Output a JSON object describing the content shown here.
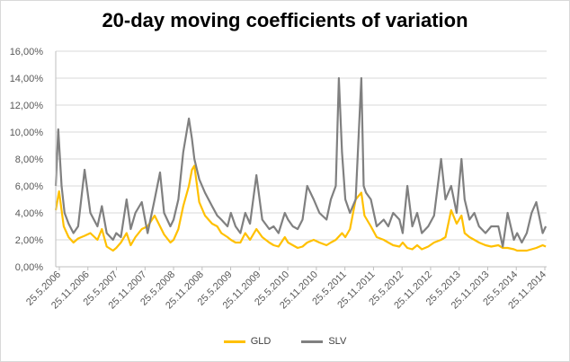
{
  "chart_data": {
    "type": "line",
    "title": "20-day moving coefficients of variation",
    "xlabel": "",
    "ylabel": "",
    "ylim": [
      0,
      0.16
    ],
    "y_ticks": [
      "0,00%",
      "2,00%",
      "4,00%",
      "6,00%",
      "8,00%",
      "10,00%",
      "12,00%",
      "14,00%",
      "16,00%"
    ],
    "x_ticks": [
      "25.5.2006",
      "25.11.2006",
      "25.5.2007",
      "25.11.2007",
      "25.5.2008",
      "25.11.2008",
      "25.5.2009",
      "25.11.2009",
      "25.5.2010",
      "25.11.2010",
      "25.5.2011",
      "25.11.2011",
      "25.5.2012",
      "25.11.2012",
      "25.5.2013",
      "25.11.2013",
      "25.5.2014",
      "25.11.2014"
    ],
    "grid": "horizontal",
    "legend": "bottom",
    "series": [
      {
        "name": "GLD",
        "color": "#ffc000",
        "x": [
          "2006-05-25",
          "2006-06-15",
          "2006-07-15",
          "2006-08-15",
          "2006-09-15",
          "2006-10-15",
          "2006-11-25",
          "2007-01-01",
          "2007-02-15",
          "2007-03-15",
          "2007-04-15",
          "2007-05-25",
          "2007-06-15",
          "2007-07-15",
          "2007-08-20",
          "2007-09-15",
          "2007-10-15",
          "2007-11-25",
          "2008-01-01",
          "2008-02-15",
          "2008-03-20",
          "2008-04-15",
          "2008-05-25",
          "2008-06-15",
          "2008-07-15",
          "2008-08-15",
          "2008-09-20",
          "2008-10-10",
          "2008-10-25",
          "2008-11-25",
          "2009-01-01",
          "2009-02-15",
          "2009-03-20",
          "2009-04-15",
          "2009-05-25",
          "2009-06-15",
          "2009-07-15",
          "2009-08-15",
          "2009-09-15",
          "2009-10-15",
          "2009-11-25",
          "2010-01-01",
          "2010-02-15",
          "2010-03-15",
          "2010-04-15",
          "2010-05-25",
          "2010-06-15",
          "2010-07-15",
          "2010-08-15",
          "2010-09-15",
          "2010-10-15",
          "2010-11-25",
          "2011-01-01",
          "2011-02-15",
          "2011-03-15",
          "2011-04-15",
          "2011-05-25",
          "2011-06-15",
          "2011-07-15",
          "2011-08-20",
          "2011-09-25",
          "2011-10-15",
          "2011-11-25",
          "2012-01-01",
          "2012-02-15",
          "2012-03-15",
          "2012-04-15",
          "2012-05-25",
          "2012-06-15",
          "2012-07-15",
          "2012-08-15",
          "2012-09-15",
          "2012-10-15",
          "2012-11-25",
          "2013-01-01",
          "2013-02-15",
          "2013-03-15",
          "2013-04-20",
          "2013-05-25",
          "2013-06-25",
          "2013-07-15",
          "2013-08-15",
          "2013-09-15",
          "2013-10-15",
          "2013-11-25",
          "2014-01-01",
          "2014-02-15",
          "2014-03-15",
          "2014-04-15",
          "2014-05-25",
          "2014-06-15",
          "2014-07-15",
          "2014-08-15",
          "2014-09-15",
          "2014-10-15",
          "2014-11-25",
          "2014-12-15"
        ],
        "values": [
          0.042,
          0.056,
          0.03,
          0.022,
          0.018,
          0.021,
          0.023,
          0.025,
          0.02,
          0.028,
          0.015,
          0.012,
          0.014,
          0.018,
          0.025,
          0.016,
          0.022,
          0.028,
          0.03,
          0.038,
          0.03,
          0.024,
          0.018,
          0.02,
          0.028,
          0.045,
          0.06,
          0.072,
          0.075,
          0.048,
          0.038,
          0.032,
          0.03,
          0.025,
          0.022,
          0.02,
          0.018,
          0.018,
          0.025,
          0.02,
          0.028,
          0.022,
          0.018,
          0.016,
          0.015,
          0.022,
          0.018,
          0.016,
          0.014,
          0.015,
          0.018,
          0.02,
          0.018,
          0.016,
          0.018,
          0.02,
          0.025,
          0.022,
          0.028,
          0.05,
          0.055,
          0.038,
          0.03,
          0.022,
          0.02,
          0.018,
          0.016,
          0.015,
          0.018,
          0.014,
          0.013,
          0.016,
          0.013,
          0.015,
          0.018,
          0.02,
          0.022,
          0.042,
          0.032,
          0.038,
          0.025,
          0.022,
          0.02,
          0.018,
          0.016,
          0.015,
          0.016,
          0.014,
          0.014,
          0.013,
          0.012,
          0.012,
          0.012,
          0.013,
          0.014,
          0.016,
          0.015
        ]
      },
      {
        "name": "SLV",
        "color": "#808080",
        "x": [
          "2006-05-25",
          "2006-06-10",
          "2006-07-01",
          "2006-07-20",
          "2006-08-15",
          "2006-09-15",
          "2006-10-15",
          "2006-11-25",
          "2007-01-01",
          "2007-02-15",
          "2007-03-15",
          "2007-04-15",
          "2007-05-25",
          "2007-06-15",
          "2007-07-15",
          "2007-08-20",
          "2007-09-15",
          "2007-10-15",
          "2007-11-25",
          "2008-01-01",
          "2008-02-15",
          "2008-03-20",
          "2008-04-15",
          "2008-05-25",
          "2008-06-15",
          "2008-07-15",
          "2008-08-15",
          "2008-09-20",
          "2008-10-10",
          "2008-10-25",
          "2008-11-25",
          "2009-01-01",
          "2009-02-15",
          "2009-03-20",
          "2009-04-15",
          "2009-05-25",
          "2009-06-15",
          "2009-07-15",
          "2009-08-15",
          "2009-09-15",
          "2009-10-15",
          "2009-11-25",
          "2010-01-01",
          "2010-02-15",
          "2010-03-15",
          "2010-04-15",
          "2010-05-25",
          "2010-06-15",
          "2010-07-15",
          "2010-08-15",
          "2010-09-15",
          "2010-10-15",
          "2010-11-25",
          "2011-01-01",
          "2011-02-15",
          "2011-03-15",
          "2011-04-15",
          "2011-05-05",
          "2011-05-25",
          "2011-06-15",
          "2011-07-15",
          "2011-08-20",
          "2011-09-25",
          "2011-10-10",
          "2011-10-25",
          "2011-11-25",
          "2012-01-01",
          "2012-02-15",
          "2012-03-15",
          "2012-04-15",
          "2012-05-25",
          "2012-06-15",
          "2012-07-15",
          "2012-08-15",
          "2012-09-15",
          "2012-10-15",
          "2012-11-25",
          "2013-01-01",
          "2013-02-15",
          "2013-03-15",
          "2013-04-20",
          "2013-05-25",
          "2013-06-25",
          "2013-07-15",
          "2013-08-15",
          "2013-09-15",
          "2013-10-15",
          "2013-11-25",
          "2014-01-01",
          "2014-02-15",
          "2014-03-15",
          "2014-04-15",
          "2014-05-25",
          "2014-06-15",
          "2014-07-15",
          "2014-08-15",
          "2014-09-15",
          "2014-10-15",
          "2014-11-25",
          "2014-12-15"
        ],
        "values": [
          0.06,
          0.102,
          0.06,
          0.04,
          0.032,
          0.025,
          0.03,
          0.072,
          0.04,
          0.03,
          0.045,
          0.025,
          0.02,
          0.025,
          0.022,
          0.05,
          0.028,
          0.04,
          0.048,
          0.025,
          0.05,
          0.07,
          0.04,
          0.03,
          0.035,
          0.05,
          0.085,
          0.11,
          0.095,
          0.08,
          0.065,
          0.055,
          0.045,
          0.038,
          0.035,
          0.03,
          0.04,
          0.03,
          0.025,
          0.04,
          0.032,
          0.068,
          0.035,
          0.028,
          0.03,
          0.025,
          0.04,
          0.035,
          0.03,
          0.028,
          0.035,
          0.06,
          0.05,
          0.04,
          0.035,
          0.05,
          0.06,
          0.14,
          0.085,
          0.05,
          0.04,
          0.05,
          0.14,
          0.06,
          0.055,
          0.05,
          0.03,
          0.035,
          0.03,
          0.04,
          0.035,
          0.025,
          0.06,
          0.03,
          0.04,
          0.025,
          0.03,
          0.038,
          0.08,
          0.05,
          0.06,
          0.04,
          0.08,
          0.05,
          0.035,
          0.04,
          0.03,
          0.025,
          0.03,
          0.03,
          0.015,
          0.04,
          0.02,
          0.025,
          0.018,
          0.025,
          0.04,
          0.048,
          0.025,
          0.03
        ]
      }
    ]
  }
}
